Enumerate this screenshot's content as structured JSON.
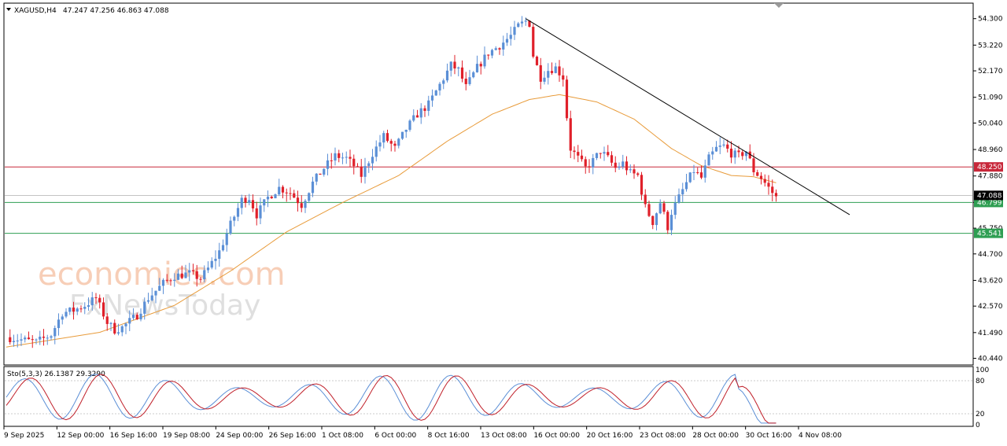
{
  "header": {
    "symbol_label": "XAGUSD,H4",
    "ohlc_label": "47.247 47.256 46.863 47.088"
  },
  "watermark": {
    "line1": "economies.com",
    "line2": "FxNewsToday"
  },
  "oscillator": {
    "label": "Sto(5,3,3) 26.1387 29.3290",
    "ticks": [
      "100",
      "80",
      "20",
      "0"
    ]
  },
  "colors": {
    "bull": "#5b8fd6",
    "bear": "#e0202a",
    "ma": "#e89b3a",
    "trend": "#000000",
    "resistance": "#c8283a",
    "support": "#2e9e52",
    "stoch_main": "#5b8fd6",
    "stoch_signal": "#c0202a"
  },
  "chart_data": {
    "type": "candlestick",
    "symbol": "XAGUSD",
    "timeframe": "H4",
    "ylim": [
      40.2,
      54.9
    ],
    "y_ticks": [
      "54.300",
      "53.220",
      "52.170",
      "51.090",
      "50.040",
      "48.960",
      "47.880",
      "46.800",
      "45.750",
      "44.700",
      "43.620",
      "42.570",
      "41.490",
      "40.440"
    ],
    "x_ticks": [
      "9 Sep 2025",
      "12 Sep 00:00",
      "16 Sep 16:00",
      "19 Sep 08:00",
      "24 Sep 00:00",
      "26 Sep 16:00",
      "1 Oct 08:00",
      "6 Oct 00:00",
      "8 Oct 16:00",
      "13 Oct 08:00",
      "16 Oct 00:00",
      "20 Oct 16:00",
      "23 Oct 08:00",
      "28 Oct 00:00",
      "30 Oct 16:00",
      "4 Nov 08:00"
    ],
    "price_path": [
      [
        0,
        41.3
      ],
      [
        8,
        41.1
      ],
      [
        12,
        41.4
      ],
      [
        15,
        42.3
      ],
      [
        18,
        42.4
      ],
      [
        21,
        42.6
      ],
      [
        24,
        42.9
      ],
      [
        27,
        41.9
      ],
      [
        29,
        41.6
      ],
      [
        31,
        41.7
      ],
      [
        35,
        42.2
      ],
      [
        38,
        42.9
      ],
      [
        42,
        43.5
      ],
      [
        45,
        43.8
      ],
      [
        49,
        43.9
      ],
      [
        52,
        43.7
      ],
      [
        54,
        44.1
      ],
      [
        57,
        44.8
      ],
      [
        60,
        45.9
      ],
      [
        63,
        46.9
      ],
      [
        65,
        47.0
      ],
      [
        67,
        46.3
      ],
      [
        70,
        47.0
      ],
      [
        73,
        47.4
      ],
      [
        76,
        47.2
      ],
      [
        79,
        46.7
      ],
      [
        82,
        47.6
      ],
      [
        85,
        48.2
      ],
      [
        88,
        48.7
      ],
      [
        91,
        48.6
      ],
      [
        93,
        48.3
      ],
      [
        95,
        47.9
      ],
      [
        98,
        48.8
      ],
      [
        101,
        49.5
      ],
      [
        104,
        49.0
      ],
      [
        107,
        49.8
      ],
      [
        110,
        50.4
      ],
      [
        113,
        50.8
      ],
      [
        116,
        51.6
      ],
      [
        119,
        52.4
      ],
      [
        121,
        52.2
      ],
      [
        123,
        51.5
      ],
      [
        126,
        52.3
      ],
      [
        129,
        52.9
      ],
      [
        132,
        53.2
      ],
      [
        135,
        53.6
      ],
      [
        137,
        54.0
      ],
      [
        139,
        54.2
      ],
      [
        140,
        54.1
      ],
      [
        141,
        52.8
      ],
      [
        143,
        51.9
      ],
      [
        145,
        52.2
      ],
      [
        147,
        52.3
      ],
      [
        149,
        51.9
      ],
      [
        150,
        50.3
      ],
      [
        151,
        49.0
      ],
      [
        153,
        48.6
      ],
      [
        155,
        48.2
      ],
      [
        157,
        48.5
      ],
      [
        159,
        48.9
      ],
      [
        161,
        48.6
      ],
      [
        163,
        48.2
      ],
      [
        165,
        48.4
      ],
      [
        167,
        48.0
      ],
      [
        169,
        47.9
      ],
      [
        171,
        46.6
      ],
      [
        173,
        46.0
      ],
      [
        175,
        46.8
      ],
      [
        177,
        45.8
      ],
      [
        178,
        46.4
      ],
      [
        180,
        47.0
      ],
      [
        182,
        47.6
      ],
      [
        184,
        48.1
      ],
      [
        186,
        47.8
      ],
      [
        188,
        48.6
      ],
      [
        190,
        49.0
      ],
      [
        192,
        49.1
      ],
      [
        194,
        48.8
      ],
      [
        196,
        48.7
      ],
      [
        198,
        48.9
      ],
      [
        200,
        48.1
      ],
      [
        202,
        47.8
      ],
      [
        204,
        47.4
      ],
      [
        206,
        47.0
      ]
    ],
    "ma_path": [
      [
        0,
        40.9
      ],
      [
        25,
        41.5
      ],
      [
        45,
        42.6
      ],
      [
        60,
        44.0
      ],
      [
        75,
        45.6
      ],
      [
        90,
        46.8
      ],
      [
        105,
        47.9
      ],
      [
        118,
        49.3
      ],
      [
        130,
        50.4
      ],
      [
        140,
        51.0
      ],
      [
        148,
        51.2
      ],
      [
        158,
        50.9
      ],
      [
        168,
        50.2
      ],
      [
        178,
        49.0
      ],
      [
        186,
        48.3
      ],
      [
        194,
        47.9
      ],
      [
        200,
        47.85
      ],
      [
        206,
        47.6
      ]
    ],
    "trendline": {
      "from_price": 54.3,
      "to_price": 46.3
    },
    "horizontal_levels": [
      {
        "price": 48.25,
        "label": "48.250",
        "kind": "resistance"
      },
      {
        "price": 46.799,
        "label": "46.799",
        "kind": "support"
      },
      {
        "price": 45.541,
        "label": "45.541",
        "kind": "support"
      }
    ],
    "current_price": {
      "price": 47.088,
      "label": "47.088"
    },
    "legend": "none",
    "grid": false
  }
}
